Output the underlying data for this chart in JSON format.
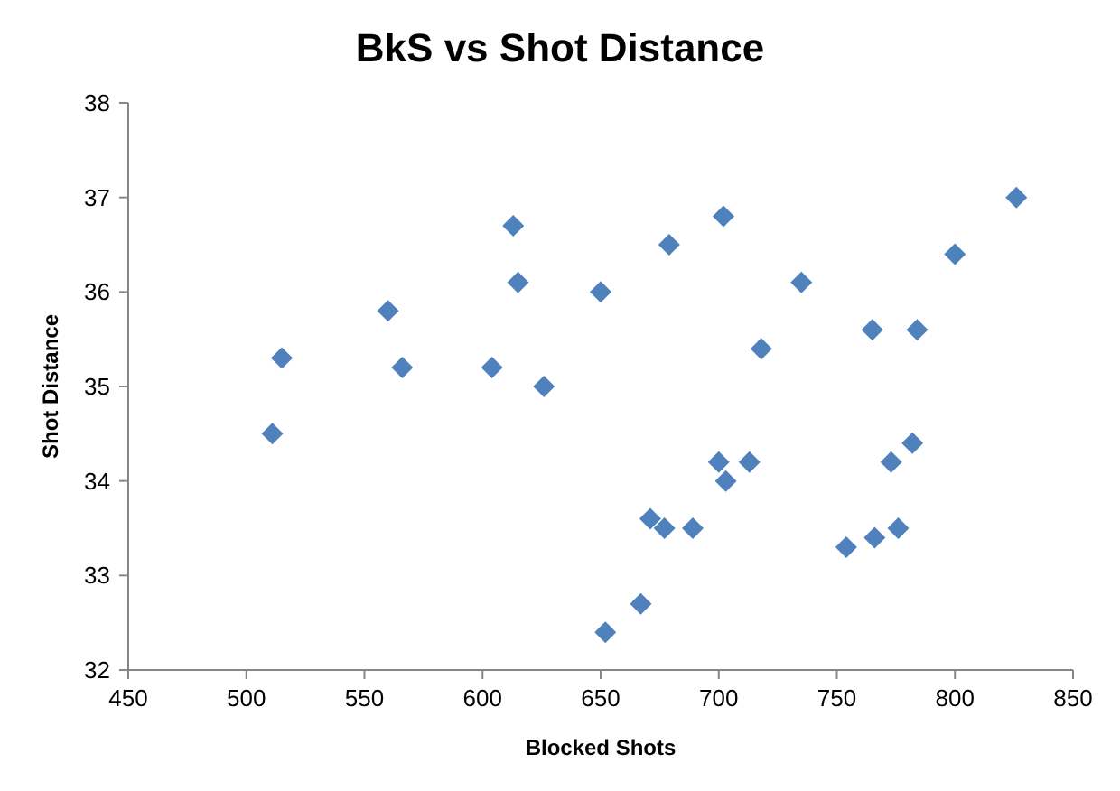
{
  "chart_data": {
    "type": "scatter",
    "title": "BkS vs Shot Distance",
    "xlabel": "Blocked Shots",
    "ylabel": "Shot Distance",
    "marker": "diamond",
    "grid": false,
    "xlim": [
      450,
      850
    ],
    "xticks": [
      450,
      500,
      550,
      600,
      650,
      700,
      750,
      800,
      850
    ],
    "ylim": [
      32,
      38
    ],
    "yticks": [
      32,
      33,
      34,
      35,
      36,
      37,
      38
    ],
    "series": [
      {
        "color": "#4f81bd",
        "x": [
          511,
          515,
          560,
          566,
          604,
          613,
          615,
          626,
          650,
          652,
          667,
          671,
          677,
          679,
          689,
          700,
          702,
          703,
          713,
          718,
          735,
          754,
          765,
          766,
          773,
          776,
          782,
          784,
          800,
          826
        ],
        "values": [
          34.5,
          35.3,
          35.8,
          35.2,
          35.2,
          36.7,
          36.1,
          35.0,
          36.0,
          32.4,
          32.7,
          33.6,
          33.5,
          36.5,
          33.5,
          34.2,
          36.8,
          34.0,
          34.2,
          35.4,
          36.1,
          33.3,
          35.6,
          33.4,
          34.2,
          33.5,
          34.4,
          35.6,
          36.4,
          37.0
        ]
      }
    ]
  }
}
